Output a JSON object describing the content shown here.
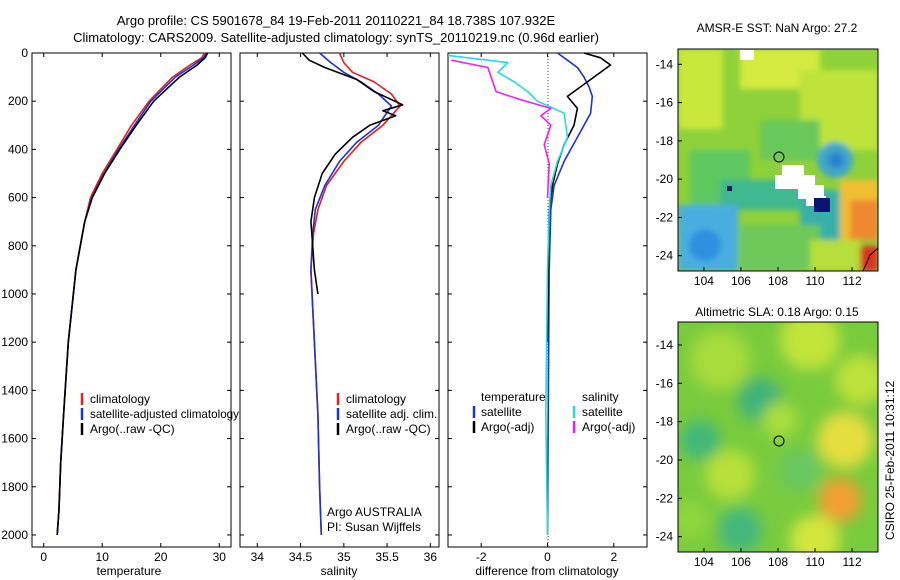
{
  "header": {
    "line1": "Argo profile: CS 5901678_84 19-Feb-2011 20110221_84 18.738S 107.932E",
    "line2": "Climatology: CARS2009. Satellite-adjusted climatology: synTS_20110219.nc (0.96d earlier)"
  },
  "footer": {
    "credit": "CSIRO 25-Feb-2011 10:31:12"
  },
  "chart_data": [
    {
      "type": "line",
      "name": "temperature-panel",
      "xlabel": "temperature",
      "xlim": [
        -2,
        32
      ],
      "ylim": [
        0,
        2050
      ],
      "yreversed": true,
      "xticks": [
        0,
        10,
        20,
        30
      ],
      "yticks": [
        0,
        200,
        400,
        600,
        800,
        1000,
        1200,
        1400,
        1600,
        1800,
        2000
      ],
      "legend": [
        "climatology",
        "satellite-adjusted climatology",
        "Argo(..raw -QC)"
      ],
      "series": [
        {
          "name": "climatology",
          "color": "#dd2222",
          "x": [
            27.5,
            27.0,
            25.0,
            22.0,
            18.0,
            15.0,
            12.5,
            10.0,
            8.0,
            7.0,
            5.5,
            4.2,
            3.4,
            2.9,
            2.6,
            2.3
          ],
          "y": [
            0,
            20,
            50,
            100,
            200,
            300,
            400,
            500,
            600,
            700,
            900,
            1200,
            1500,
            1700,
            1900,
            2000
          ]
        },
        {
          "name": "satellite-adjusted climatology",
          "color": "#2233cc",
          "x": [
            27.8,
            27.3,
            25.6,
            22.5,
            18.3,
            15.5,
            12.8,
            10.3,
            8.2,
            7.0,
            5.5,
            4.2,
            3.4,
            2.9,
            2.6,
            2.3
          ],
          "y": [
            0,
            20,
            50,
            100,
            200,
            300,
            400,
            500,
            600,
            700,
            900,
            1200,
            1500,
            1700,
            1900,
            2000
          ]
        },
        {
          "name": "Argo(..raw -QC)",
          "color": "#000000",
          "x": [
            28.0,
            27.6,
            26.2,
            23.2,
            18.8,
            15.8,
            13.0,
            10.4,
            8.3,
            7.0,
            5.5,
            4.2,
            3.4,
            2.9,
            2.6,
            2.3
          ],
          "y": [
            0,
            20,
            50,
            100,
            200,
            300,
            400,
            500,
            600,
            700,
            900,
            1200,
            1500,
            1700,
            1900,
            2000
          ]
        }
      ]
    },
    {
      "type": "line",
      "name": "salinity-panel",
      "xlabel": "salinity",
      "xlim": [
        33.8,
        36.1
      ],
      "ylim": [
        0,
        2050
      ],
      "yreversed": true,
      "xticks": [
        34,
        34.5,
        35,
        35.5,
        36
      ],
      "legend": [
        "climatology",
        "satellite adj. clim.",
        "Argo(..raw -QC)"
      ],
      "annotations": [
        "Argo AUSTRALIA",
        "PI: Susan Wijffels"
      ],
      "series": [
        {
          "name": "climatology",
          "color": "#dd2222",
          "x": [
            34.95,
            35.0,
            35.1,
            35.35,
            35.55,
            35.65,
            35.45,
            35.2,
            35.0,
            34.8,
            34.7,
            34.65,
            34.62,
            34.66,
            34.7,
            34.72,
            34.74
          ],
          "y": [
            0,
            40,
            80,
            120,
            170,
            220,
            300,
            370,
            450,
            550,
            650,
            750,
            900,
            1200,
            1500,
            1800,
            2000
          ]
        },
        {
          "name": "satellite adj. clim.",
          "color": "#2233cc",
          "x": [
            34.72,
            34.85,
            35.0,
            35.2,
            35.4,
            35.55,
            35.4,
            35.15,
            34.95,
            34.78,
            34.67,
            34.64,
            34.62,
            34.66,
            34.7,
            34.72,
            34.74
          ],
          "y": [
            0,
            40,
            80,
            120,
            170,
            220,
            300,
            370,
            450,
            550,
            650,
            750,
            900,
            1200,
            1500,
            1800,
            2000
          ]
        },
        {
          "name": "Argo(..raw -QC)",
          "color": "#000000",
          "x": [
            34.52,
            34.6,
            34.78,
            35.15,
            35.35,
            35.68,
            35.45,
            35.6,
            35.3,
            35.1,
            34.9,
            34.75,
            34.66,
            34.62,
            34.64,
            34.66,
            34.7
          ],
          "y": [
            0,
            30,
            60,
            110,
            160,
            215,
            240,
            260,
            300,
            350,
            420,
            500,
            600,
            700,
            800,
            900,
            1000
          ]
        }
      ]
    },
    {
      "type": "line",
      "name": "difference-panel",
      "xlabel": "difference from climatology",
      "xlim": [
        -3,
        3
      ],
      "ylim": [
        0,
        2050
      ],
      "yreversed": true,
      "xticks": [
        -2,
        0,
        2
      ],
      "legend_titles": [
        "temperature",
        "salinity"
      ],
      "legend": [
        "satellite",
        "Argo(-adj)",
        "satellite",
        "Argo(-adj)"
      ],
      "series": [
        {
          "name": "temperature satellite",
          "color": "#2233cc",
          "x": [
            0.3,
            0.6,
            0.9,
            1.1,
            1.25,
            1.35,
            1.3,
            0.9,
            0.5,
            0.2,
            0.1,
            0.05,
            0.02,
            0.0
          ],
          "y": [
            0,
            30,
            60,
            100,
            140,
            180,
            250,
            350,
            450,
            550,
            650,
            900,
            1500,
            2000
          ]
        },
        {
          "name": "temperature Argo(-adj)",
          "color": "#000000",
          "x": [
            1.1,
            1.6,
            1.9,
            1.4,
            0.6,
            0.9,
            0.8,
            0.5,
            0.3,
            0.15,
            0.05,
            0.02,
            0.0
          ],
          "y": [
            0,
            20,
            50,
            100,
            180,
            230,
            300,
            380,
            460,
            550,
            650,
            900,
            1200
          ]
        },
        {
          "name": "salinity satellite",
          "color": "#22dddd",
          "x": [
            -3.0,
            -1.2,
            -1.5,
            -1.0,
            -0.6,
            -0.3,
            0.5,
            0.6,
            0.3,
            0.1,
            0.05,
            0.0,
            -0.05,
            0.0
          ],
          "y": [
            10,
            40,
            80,
            120,
            160,
            200,
            250,
            350,
            450,
            550,
            650,
            900,
            1500,
            2000
          ]
        },
        {
          "name": "salinity Argo(-adj)",
          "color": "#ee22ee",
          "x": [
            -2.9,
            -1.8,
            -1.7,
            -1.55,
            -0.9,
            -0.4,
            0.1,
            -0.2,
            0.1,
            -0.1,
            0.05,
            0.0
          ],
          "y": [
            30,
            60,
            100,
            160,
            190,
            210,
            230,
            260,
            300,
            380,
            460,
            600
          ]
        }
      ]
    },
    {
      "type": "heatmap",
      "name": "sst-map",
      "title": "AMSR-E SST: NaN Argo: 27.2",
      "xlim": [
        102.6,
        113.4
      ],
      "ylim": [
        -24.8,
        -13.2
      ],
      "xticks": [
        104,
        106,
        108,
        110,
        112
      ],
      "yticks": [
        -14,
        -16,
        -18,
        -20,
        -22,
        -24
      ],
      "marker": {
        "lon": 107.932,
        "lat": -18.738
      }
    },
    {
      "type": "heatmap",
      "name": "sla-map",
      "title": "Altimetric SLA: 0.18 Argo: 0.15",
      "xlim": [
        102.6,
        113.4
      ],
      "ylim": [
        -24.8,
        -12.8
      ],
      "xticks": [
        104,
        106,
        108,
        110,
        112
      ],
      "yticks": [
        -14,
        -16,
        -18,
        -20,
        -22,
        -24
      ],
      "marker": {
        "lon": 107.932,
        "lat": -18.738
      }
    }
  ]
}
